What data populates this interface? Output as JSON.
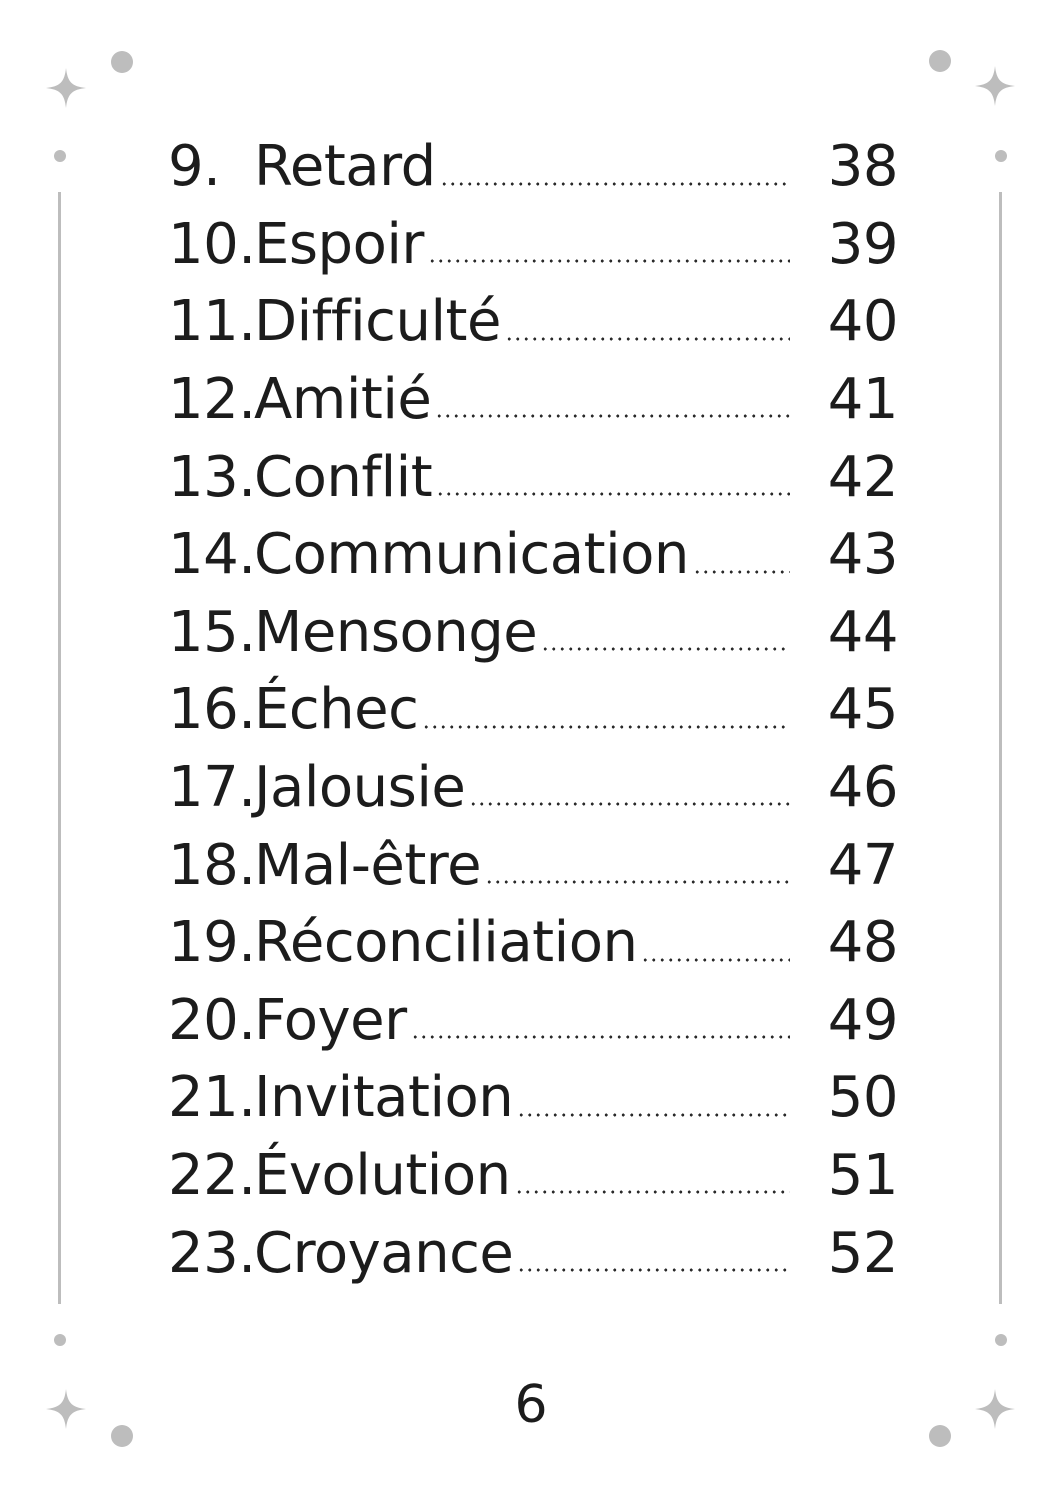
{
  "toc": {
    "entries": [
      {
        "number": "9.",
        "title": "Retard",
        "page": "38"
      },
      {
        "number": "10.",
        "title": "Espoir",
        "page": "39"
      },
      {
        "number": "11.",
        "title": "Difficulté",
        "page": "40"
      },
      {
        "number": "12.",
        "title": "Amitié",
        "page": "41"
      },
      {
        "number": "13.",
        "title": "Conflit",
        "page": "42"
      },
      {
        "number": "14.",
        "title": "Communication",
        "page": "43"
      },
      {
        "number": "15.",
        "title": "Mensonge",
        "page": "44"
      },
      {
        "number": "16.",
        "title": "Échec",
        "page": "45"
      },
      {
        "number": "17.",
        "title": "Jalousie",
        "page": "46"
      },
      {
        "number": "18.",
        "title": "Mal-être",
        "page": "47"
      },
      {
        "number": "19.",
        "title": "Réconciliation",
        "page": "48"
      },
      {
        "number": "20.",
        "title": "Foyer",
        "page": "49"
      },
      {
        "number": "21.",
        "title": "Invitation",
        "page": "50"
      },
      {
        "number": "22.",
        "title": "Évolution",
        "page": "51"
      },
      {
        "number": "23.",
        "title": "Croyance",
        "page": "52"
      }
    ]
  },
  "footer": {
    "page_number": "6"
  },
  "colors": {
    "ornament": "#bdbdbd",
    "text": "#1c1c1c"
  },
  "ornaments": {
    "icon": "sparkle-icon"
  }
}
